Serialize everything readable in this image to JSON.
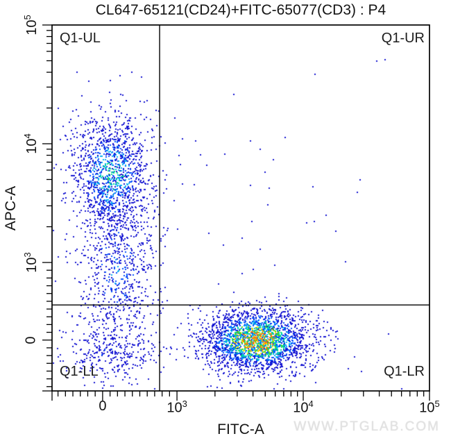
{
  "watermark": "WWW.PTGLAB.COM",
  "chart_data": {
    "type": "scatter",
    "subtype": "flow-cytometry-pseudocolor-dot-plot",
    "title": "CL647-65121(CD24)+FITC-65077(CD3) : P4",
    "xlabel": "FITC-A",
    "ylabel": "APC-A",
    "grid": false,
    "legend": false,
    "x_axis": {
      "scale": "biexponential",
      "zero_frac": 0.134,
      "kilo_frac": 0.331,
      "majors": [
        {
          "value": 0,
          "label": "0"
        },
        {
          "value": 1000,
          "label": "10^3"
        },
        {
          "value": 10000,
          "label": "10^4"
        },
        {
          "value": 100000,
          "label": "10^5"
        }
      ]
    },
    "y_axis": {
      "scale": "biexponential",
      "zero_frac": 0.139,
      "kilo_frac": 0.351,
      "majors": [
        {
          "value": 0,
          "label": "0"
        },
        {
          "value": 1000,
          "label": "10^3"
        },
        {
          "value": 10000,
          "label": "10^4"
        },
        {
          "value": 100000,
          "label": "10^5"
        }
      ]
    },
    "quadrant_gates": {
      "x_frac": 0.285,
      "y_frac": 0.235,
      "x_value_approx": 770,
      "y_value_approx": 450,
      "labels": {
        "upper_left": "Q1-UL",
        "upper_right": "Q1-UR",
        "lower_left": "Q1-LL",
        "lower_right": "Q1-LR"
      }
    },
    "populations": [
      {
        "name": "background-sparse",
        "fx": 0.33,
        "fy": 0.4,
        "sx": 0.3,
        "sy": 0.27,
        "count": 120,
        "peak": 0.1
      },
      {
        "name": "double-negative-lower-left",
        "fx": 0.153,
        "fy": 0.11,
        "sx": 0.07,
        "sy": 0.057,
        "count": 330,
        "peak": 0.3
      },
      {
        "name": "cd24-apc-mid-smear",
        "fx": 0.171,
        "fy": 0.338,
        "sx": 0.053,
        "sy": 0.133,
        "count": 700,
        "peak": 0.42
      },
      {
        "name": "cd24-positive-apc-high",
        "fx": 0.156,
        "fy": 0.59,
        "sx": 0.055,
        "sy": 0.087,
        "count": 1250,
        "peak": 0.62
      },
      {
        "name": "cd3-positive-fitc-high",
        "fx": 0.542,
        "fy": 0.137,
        "sx": 0.072,
        "sy": 0.044,
        "count": 2350,
        "peak": 1.0
      }
    ],
    "colormap": {
      "thresholds": [
        0.36,
        0.52,
        0.66,
        0.8,
        0.9,
        0.97,
        1.01
      ],
      "colors": [
        "#1414d2",
        "#0050ff",
        "#00b0f0",
        "#00dc8c",
        "#64e000",
        "#ffe000",
        "#ff8000"
      ]
    },
    "line_color": "#000000"
  }
}
